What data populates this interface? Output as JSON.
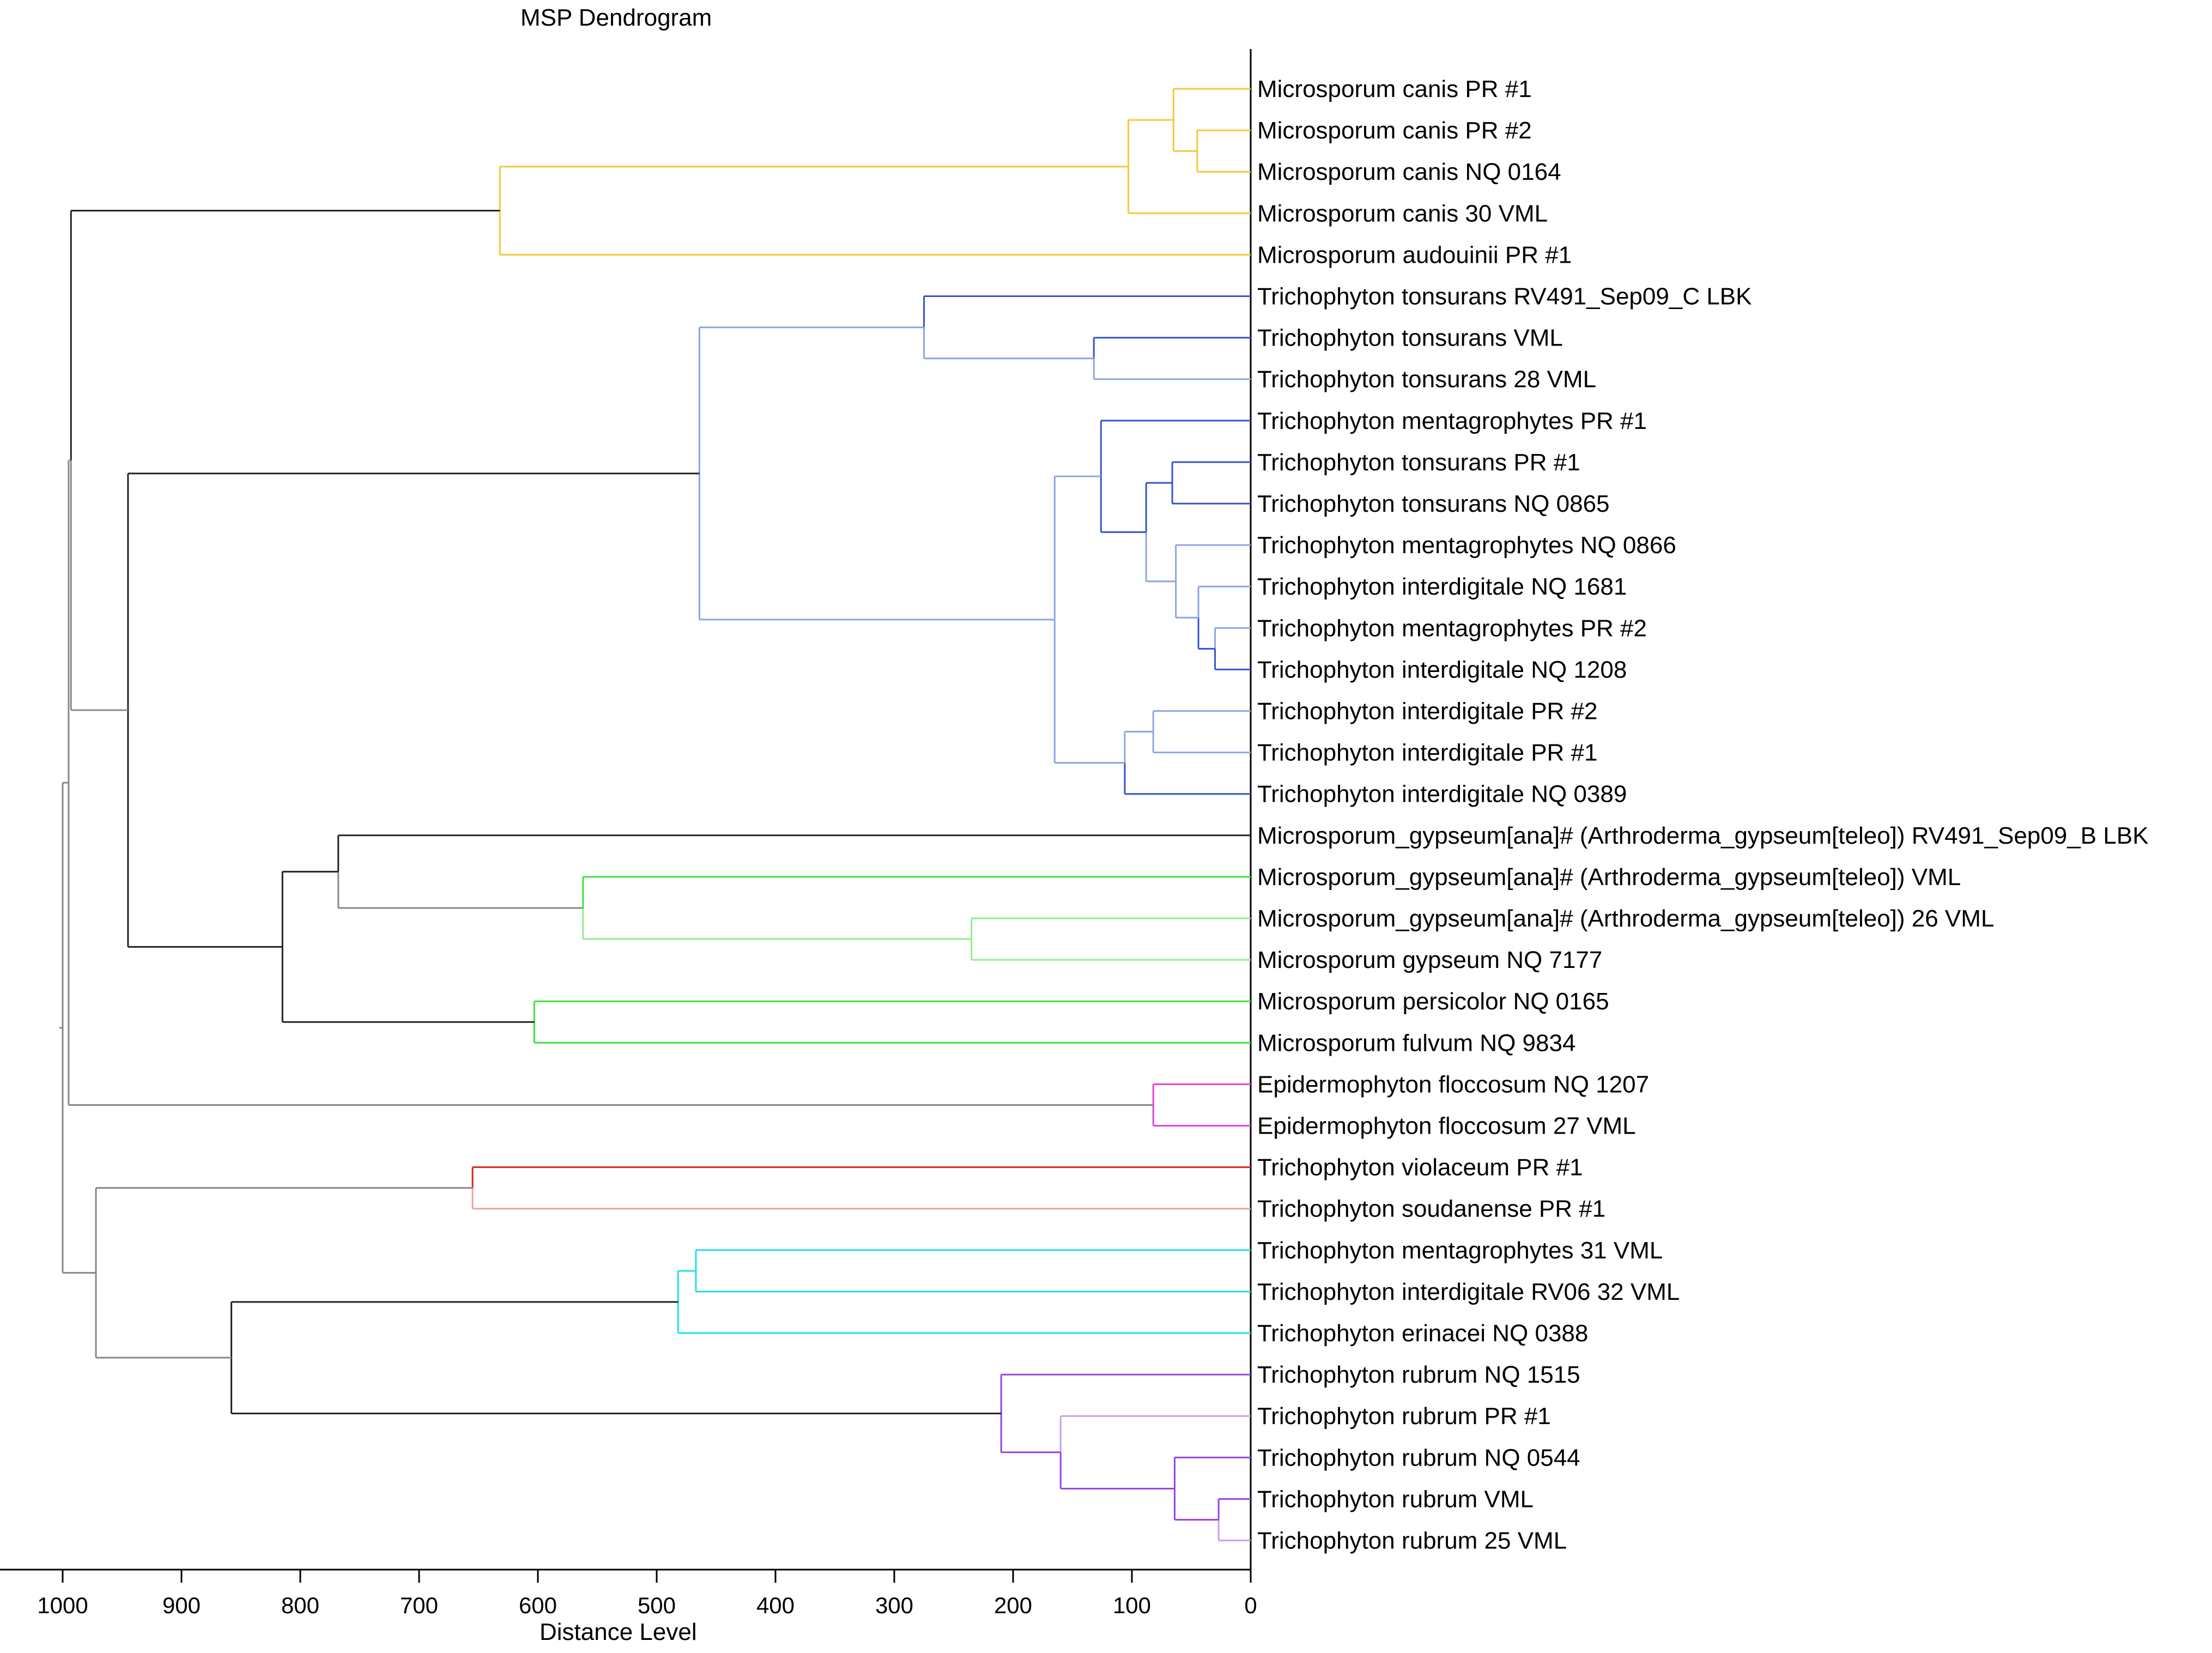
{
  "title": "MSP Dendrogram",
  "xlabel": "Distance Level",
  "ticks": [
    1000,
    900,
    800,
    700,
    600,
    500,
    400,
    300,
    200,
    100,
    0
  ],
  "colors": {
    "yellow": "#f2c93a",
    "blue": "#3355cc",
    "lightblue": "#8ea4e6",
    "green": "#40e040",
    "lightgreen": "#90ee90",
    "magenta": "#e040e0",
    "red": "#e02020",
    "pink": "#f0a0a0",
    "cyan": "#20e0e8",
    "purple": "#9a40e0",
    "lightpurple": "#c8a0f0",
    "black": "#222222",
    "gray": "#888888"
  },
  "leaves": [
    "Microsporum canis PR #1",
    "Microsporum canis PR #2",
    "Microsporum canis NQ 0164",
    "Microsporum canis 30 VML",
    "Microsporum audouinii PR #1",
    "Trichophyton tonsurans RV491_Sep09_C LBK",
    "Trichophyton tonsurans VML",
    "Trichophyton tonsurans 28 VML",
    "Trichophyton mentagrophytes PR #1",
    "Trichophyton tonsurans PR #1",
    "Trichophyton tonsurans NQ 0865",
    "Trichophyton mentagrophytes NQ 0866",
    "Trichophyton interdigitale NQ 1681",
    "Trichophyton mentagrophytes PR #2",
    "Trichophyton interdigitale NQ 1208",
    "Trichophyton interdigitale PR #2",
    "Trichophyton interdigitale PR #1",
    "Trichophyton interdigitale NQ 0389",
    "Microsporum_gypseum[ana]# (Arthroderma_gypseum[teleo]) RV491_Sep09_B LBK",
    "Microsporum_gypseum[ana]# (Arthroderma_gypseum[teleo]) VML",
    "Microsporum_gypseum[ana]# (Arthroderma_gypseum[teleo]) 26 VML",
    "Microsporum gypseum NQ 7177",
    "Microsporum persicolor NQ 0165",
    "Microsporum fulvum NQ 9834",
    "Epidermophyton floccosum NQ 1207",
    "Epidermophyton floccosum 27 VML",
    "Trichophyton violaceum PR #1",
    "Trichophyton soudanense PR #1",
    "Trichophyton mentagrophytes 31 VML",
    "Trichophyton interdigitale RV06 32 VML",
    "Trichophyton erinacei NQ 0388",
    "Trichophyton rubrum NQ 1515",
    "Trichophyton rubrum PR #1",
    "Trichophyton rubrum NQ 0544",
    "Trichophyton rubrum VML",
    "Trichophyton rubrum 25 VML"
  ],
  "merges": [
    {
      "id": "A1",
      "children": [
        "L1",
        "L2"
      ],
      "distance": 45,
      "colors": [
        "yellow",
        "yellow"
      ]
    },
    {
      "id": "A2",
      "children": [
        "L0",
        "A1"
      ],
      "distance": 65,
      "colors": [
        "yellow",
        "yellow"
      ]
    },
    {
      "id": "A3",
      "children": [
        "A2",
        "L3"
      ],
      "distance": 103,
      "colors": [
        "yellow",
        "yellow"
      ]
    },
    {
      "id": "A4",
      "children": [
        "A3",
        "L4"
      ],
      "distance": 632,
      "colors": [
        "yellow",
        "yellow"
      ]
    },
    {
      "id": "B1",
      "children": [
        "L6",
        "L7"
      ],
      "distance": 132,
      "colors": [
        "blue",
        "lightblue"
      ]
    },
    {
      "id": "B2",
      "children": [
        "L5",
        "B1"
      ],
      "distance": 275,
      "colors": [
        "blue",
        "lightblue"
      ]
    },
    {
      "id": "B3",
      "children": [
        "L9",
        "L10"
      ],
      "distance": 66,
      "colors": [
        "blue",
        "blue"
      ]
    },
    {
      "id": "B4",
      "children": [
        "L13",
        "L14"
      ],
      "distance": 30,
      "colors": [
        "lightblue",
        "blue"
      ]
    },
    {
      "id": "B5",
      "children": [
        "L12",
        "B4"
      ],
      "distance": 44,
      "colors": [
        "lightblue",
        "blue"
      ]
    },
    {
      "id": "B6",
      "children": [
        "L11",
        "B5"
      ],
      "distance": 63,
      "colors": [
        "lightblue",
        "lightblue"
      ]
    },
    {
      "id": "B7",
      "children": [
        "B3",
        "B6"
      ],
      "distance": 88,
      "colors": [
        "blue",
        "lightblue"
      ]
    },
    {
      "id": "B8",
      "children": [
        "L8",
        "B7"
      ],
      "distance": 126,
      "colors": [
        "blue",
        "blue"
      ]
    },
    {
      "id": "B9",
      "children": [
        "L15",
        "L16"
      ],
      "distance": 82,
      "colors": [
        "lightblue",
        "lightblue"
      ]
    },
    {
      "id": "B10",
      "children": [
        "B9",
        "L17"
      ],
      "distance": 106,
      "colors": [
        "lightblue",
        "blue"
      ]
    },
    {
      "id": "B11",
      "children": [
        "B8",
        "B10"
      ],
      "distance": 165,
      "colors": [
        "lightblue",
        "lightblue"
      ]
    },
    {
      "id": "B12",
      "children": [
        "B2",
        "B11"
      ],
      "distance": 464,
      "colors": [
        "lightblue",
        "lightblue"
      ]
    },
    {
      "id": "G1",
      "children": [
        "L20",
        "L21"
      ],
      "distance": 235,
      "colors": [
        "lightgreen",
        "lightgreen"
      ]
    },
    {
      "id": "G2",
      "children": [
        "L19",
        "G1"
      ],
      "distance": 562,
      "colors": [
        "green",
        "lightgreen"
      ]
    },
    {
      "id": "G3",
      "children": [
        "L18",
        "G2"
      ],
      "distance": 768,
      "colors": [
        "black",
        "gray"
      ]
    },
    {
      "id": "G4",
      "children": [
        "L22",
        "L23"
      ],
      "distance": 603,
      "colors": [
        "green",
        "green"
      ]
    },
    {
      "id": "G5",
      "children": [
        "G3",
        "G4"
      ],
      "distance": 815,
      "colors": [
        "black",
        "black"
      ]
    },
    {
      "id": "E1",
      "children": [
        "L24",
        "L25"
      ],
      "distance": 82,
      "colors": [
        "magenta",
        "magenta"
      ]
    },
    {
      "id": "R1",
      "children": [
        "L26",
        "L27"
      ],
      "distance": 655,
      "colors": [
        "red",
        "pink"
      ]
    },
    {
      "id": "C1",
      "children": [
        "L28",
        "L29"
      ],
      "distance": 467,
      "colors": [
        "cyan",
        "cyan"
      ]
    },
    {
      "id": "C2",
      "children": [
        "C1",
        "L30"
      ],
      "distance": 482,
      "colors": [
        "cyan",
        "cyan"
      ]
    },
    {
      "id": "P1",
      "children": [
        "L34",
        "L35"
      ],
      "distance": 27,
      "colors": [
        "purple",
        "lightpurple"
      ]
    },
    {
      "id": "P2",
      "children": [
        "L33",
        "P1"
      ],
      "distance": 64,
      "colors": [
        "purple",
        "purple"
      ]
    },
    {
      "id": "P3",
      "children": [
        "L32",
        "P2"
      ],
      "distance": 160,
      "colors": [
        "lightpurple",
        "purple"
      ]
    },
    {
      "id": "P4",
      "children": [
        "L31",
        "P3"
      ],
      "distance": 210,
      "colors": [
        "purple",
        "purple"
      ]
    },
    {
      "id": "X1",
      "children": [
        "C2",
        "P4"
      ],
      "distance": 858,
      "colors": [
        "black",
        "black"
      ]
    },
    {
      "id": "X2",
      "children": [
        "R1",
        "X1"
      ],
      "distance": 972,
      "colors": [
        "gray",
        "gray"
      ]
    },
    {
      "id": "Y1",
      "children": [
        "B12",
        "G5"
      ],
      "distance": 945,
      "colors": [
        "black",
        "black"
      ]
    },
    {
      "id": "Z1",
      "children": [
        "A4",
        "Y1"
      ],
      "distance": 993,
      "colors": [
        "black",
        "gray"
      ]
    },
    {
      "id": "Z2",
      "children": [
        "Z1",
        "E1"
      ],
      "distance": 995,
      "colors": [
        "gray",
        "gray"
      ]
    },
    {
      "id": "ROOT",
      "children": [
        "Z2",
        "X2"
      ],
      "distance": 1000,
      "colors": [
        "gray",
        "gray"
      ]
    }
  ]
}
